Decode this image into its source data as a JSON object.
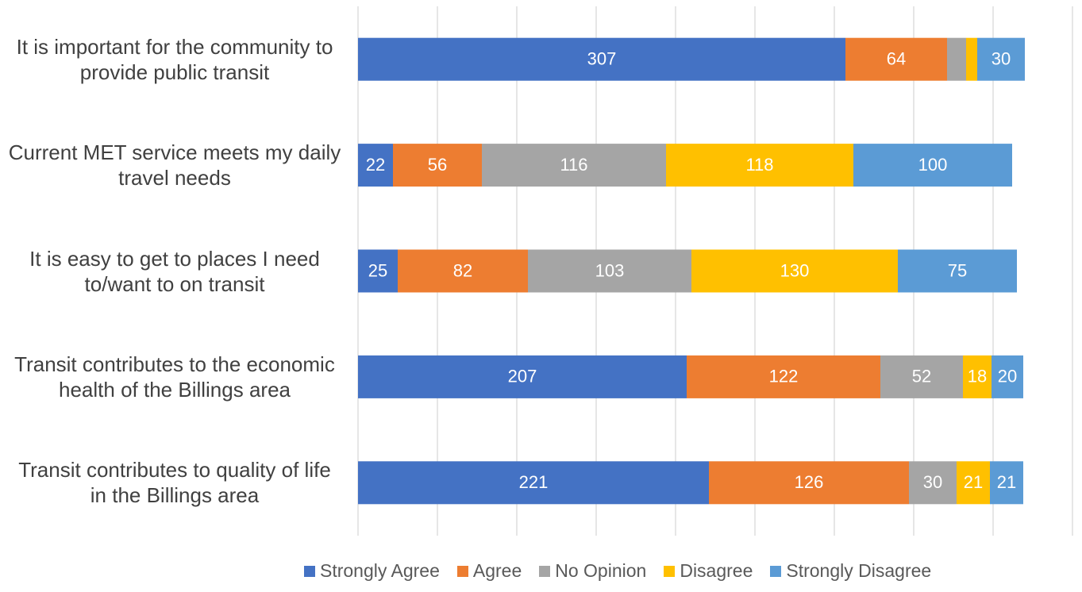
{
  "chart_data": {
    "type": "stacked_barh",
    "categories": [
      "It is important for the community to provide public transit",
      "Current MET service meets my daily travel needs",
      "It is easy to get to places I need to/want to on transit",
      "Transit contributes to the economic health of the Billings area",
      "Transit contributes to quality of life in the Billings area"
    ],
    "series": [
      {
        "name": "Strongly Agree",
        "color": "#4472c4",
        "values": [
          307,
          22,
          25,
          207,
          221
        ]
      },
      {
        "name": "Agree",
        "color": "#ed7d31",
        "values": [
          64,
          56,
          82,
          122,
          126
        ]
      },
      {
        "name": "No Opinion",
        "color": "#a5a5a5",
        "values": [
          12,
          116,
          103,
          52,
          30
        ]
      },
      {
        "name": "Disagree",
        "color": "#ffc000",
        "values": [
          7,
          118,
          130,
          18,
          21
        ]
      },
      {
        "name": "Strongly Disagree",
        "color": "#5b9bd5",
        "values": [
          30,
          100,
          75,
          20,
          21
        ]
      }
    ],
    "xlim": [
      0,
      450
    ],
    "xticks": [
      0,
      50,
      100,
      150,
      200,
      250,
      300,
      350,
      400,
      450
    ],
    "grid": true,
    "legend": "bottom"
  }
}
